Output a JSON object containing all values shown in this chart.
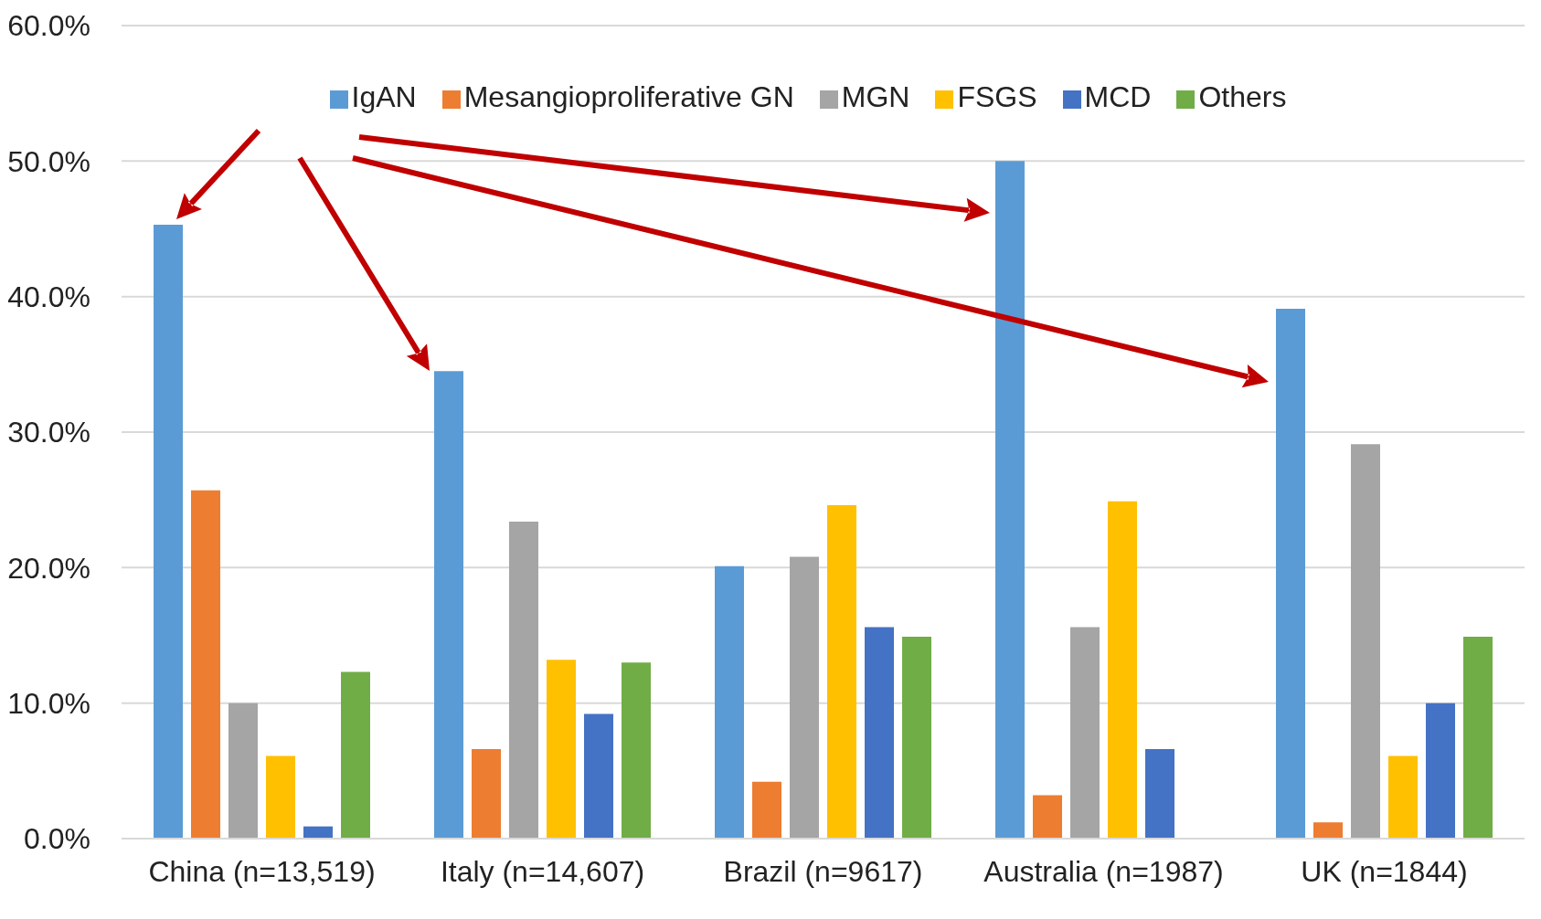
{
  "chart_data": {
    "type": "bar",
    "categories": [
      "China (n=13,519)",
      "Italy (n=14,607)",
      "Brazil (n=9617)",
      "Australia (n=1987)",
      "UK (n=1844)"
    ],
    "series": [
      {
        "name": "IgAN",
        "color": "#5b9bd5",
        "values": [
          45.3,
          34.5,
          20.1,
          50.0,
          39.1
        ]
      },
      {
        "name": "Mesangioproliferative GN",
        "color": "#ed7d31",
        "values": [
          25.7,
          6.6,
          4.2,
          3.2,
          1.2
        ]
      },
      {
        "name": "MGN",
        "color": "#a5a5a5",
        "values": [
          10.0,
          23.4,
          20.8,
          15.6,
          29.1
        ]
      },
      {
        "name": "FSGS",
        "color": "#ffc000",
        "values": [
          6.1,
          13.2,
          24.6,
          24.9,
          6.1
        ]
      },
      {
        "name": "MCD",
        "color": "#4472c4",
        "values": [
          0.9,
          9.2,
          15.6,
          6.6,
          10.0
        ]
      },
      {
        "name": "Others",
        "color": "#70ad47",
        "values": [
          12.3,
          13.0,
          14.9,
          null,
          14.9
        ]
      }
    ],
    "ylim": [
      0,
      60
    ],
    "yticks": [
      {
        "value": 0,
        "label": "0.0%"
      },
      {
        "value": 10,
        "label": "10.0%"
      },
      {
        "value": 20,
        "label": "20.0%"
      },
      {
        "value": 30,
        "label": "30.0%"
      },
      {
        "value": 40,
        "label": "40.0%"
      },
      {
        "value": 50,
        "label": "50.0%"
      },
      {
        "value": 60,
        "label": "60.0%"
      }
    ],
    "grid": "y",
    "legend": "top"
  }
}
